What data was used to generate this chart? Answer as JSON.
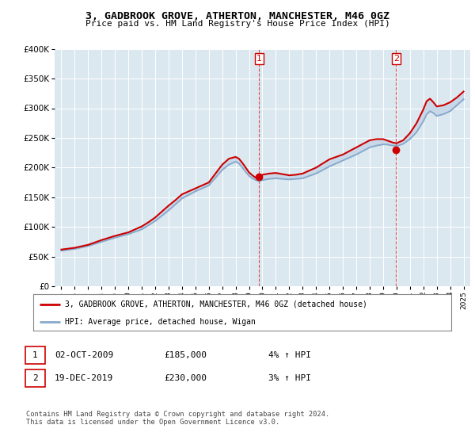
{
  "title": "3, GADBROOK GROVE, ATHERTON, MANCHESTER, M46 0GZ",
  "subtitle": "Price paid vs. HM Land Registry's House Price Index (HPI)",
  "legend_line1": "3, GADBROOK GROVE, ATHERTON, MANCHESTER, M46 0GZ (detached house)",
  "legend_line2": "HPI: Average price, detached house, Wigan",
  "transaction1_label": "1",
  "transaction1_date": "02-OCT-2009",
  "transaction1_price": "£185,000",
  "transaction1_hpi": "4% ↑ HPI",
  "transaction2_label": "2",
  "transaction2_date": "19-DEC-2019",
  "transaction2_price": "£230,000",
  "transaction2_hpi": "3% ↑ HPI",
  "footnote": "Contains HM Land Registry data © Crown copyright and database right 2024.\nThis data is licensed under the Open Government Licence v3.0.",
  "red_color": "#cc0000",
  "blue_color": "#88aacc",
  "fill_color": "#c8d8e8",
  "background_color": "#ffffff",
  "plot_bg_color": "#dce8f0",
  "grid_color": "#ffffff",
  "ylim": [
    0,
    400000
  ],
  "xlim_start": 1994.5,
  "xlim_end": 2025.5,
  "hpi_years": [
    1995,
    1995.5,
    1996,
    1996.5,
    1997,
    1997.5,
    1998,
    1998.5,
    1999,
    1999.5,
    2000,
    2000.5,
    2001,
    2001.5,
    2002,
    2002.5,
    2003,
    2003.5,
    2004,
    2004.5,
    2005,
    2005.5,
    2006,
    2006.5,
    2007,
    2007.5,
    2008,
    2008.25,
    2008.5,
    2008.75,
    2009,
    2009.25,
    2009.5,
    2009.75,
    2010,
    2010.5,
    2011,
    2011.5,
    2012,
    2012.5,
    2013,
    2013.5,
    2014,
    2014.5,
    2015,
    2015.5,
    2016,
    2016.5,
    2017,
    2017.5,
    2018,
    2018.5,
    2019,
    2019.25,
    2019.5,
    2019.75,
    2020,
    2020.5,
    2021,
    2021.5,
    2022,
    2022.25,
    2022.5,
    2022.75,
    2023,
    2023.5,
    2024,
    2024.5,
    2025
  ],
  "hpi_values": [
    60000,
    61500,
    63000,
    65500,
    68000,
    71500,
    75000,
    78500,
    82000,
    85000,
    88000,
    92000,
    96000,
    103000,
    110000,
    119000,
    128000,
    138000,
    148000,
    154000,
    160000,
    165000,
    170000,
    183000,
    196000,
    205000,
    210000,
    207000,
    200000,
    193000,
    186000,
    182000,
    179000,
    177000,
    179000,
    181000,
    182000,
    181000,
    180000,
    181000,
    182000,
    186000,
    190000,
    196000,
    202000,
    207000,
    212000,
    217000,
    222000,
    228000,
    234000,
    237000,
    239000,
    239000,
    238000,
    237000,
    236000,
    240000,
    248000,
    260000,
    278000,
    290000,
    295000,
    292000,
    287000,
    290000,
    295000,
    305000,
    315000
  ],
  "property_years": [
    1995,
    1995.5,
    1996,
    1996.5,
    1997,
    1997.5,
    1998,
    1998.5,
    1999,
    1999.5,
    2000,
    2000.5,
    2001,
    2001.5,
    2002,
    2002.5,
    2003,
    2003.5,
    2004,
    2004.5,
    2005,
    2005.5,
    2006,
    2006.5,
    2007,
    2007.5,
    2008,
    2008.25,
    2008.5,
    2008.75,
    2009,
    2009.25,
    2009.5,
    2009.75,
    2010,
    2010.5,
    2011,
    2011.5,
    2012,
    2012.5,
    2013,
    2013.5,
    2014,
    2014.5,
    2015,
    2015.5,
    2016,
    2016.5,
    2017,
    2017.5,
    2018,
    2018.5,
    2019,
    2019.25,
    2019.5,
    2019.75,
    2020,
    2020.5,
    2021,
    2021.5,
    2022,
    2022.25,
    2022.5,
    2022.75,
    2023,
    2023.5,
    2024,
    2024.5,
    2025
  ],
  "property_values": [
    62000,
    63500,
    65000,
    67500,
    70000,
    74000,
    78000,
    81500,
    85000,
    88000,
    91000,
    96000,
    101000,
    108000,
    116000,
    126000,
    136000,
    145000,
    155000,
    160000,
    165000,
    170000,
    175000,
    190000,
    205000,
    215000,
    218000,
    215000,
    208000,
    200000,
    192000,
    187000,
    183000,
    185000,
    188000,
    190000,
    191000,
    189000,
    187000,
    188000,
    190000,
    195000,
    200000,
    207000,
    214000,
    218000,
    222000,
    228000,
    234000,
    240000,
    246000,
    248000,
    248000,
    246000,
    244000,
    242000,
    241000,
    246000,
    258000,
    275000,
    298000,
    312000,
    316000,
    310000,
    303000,
    305000,
    310000,
    318000,
    328000
  ],
  "sale1_x": 2009.75,
  "sale1_y": 185000,
  "sale2_x": 2019.97,
  "sale2_y": 230000,
  "vline1_x": 2009.75,
  "vline2_x": 2019.97,
  "xtick_years": [
    1995,
    1996,
    1997,
    1998,
    1999,
    2000,
    2001,
    2002,
    2003,
    2004,
    2005,
    2006,
    2007,
    2008,
    2009,
    2010,
    2011,
    2012,
    2013,
    2014,
    2015,
    2016,
    2017,
    2018,
    2019,
    2020,
    2021,
    2022,
    2023,
    2024,
    2025
  ]
}
